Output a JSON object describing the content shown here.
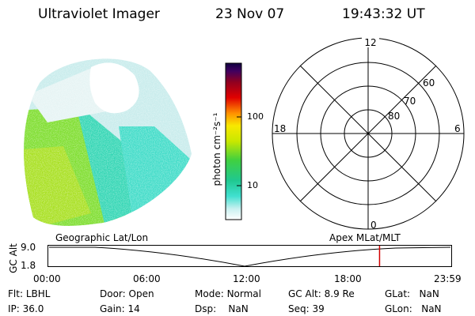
{
  "header": {
    "instrument": "Ultraviolet Imager",
    "date": "23 Nov 07",
    "time": "19:43:32 UT"
  },
  "colorbar": {
    "unit_label": "photon cm⁻²s⁻¹",
    "ticks": [
      "100",
      "10"
    ],
    "scale": "log"
  },
  "polar_grid": {
    "hour_labels": [
      "12",
      "18",
      "6",
      "0"
    ],
    "lat_labels": [
      "60",
      "70",
      "80"
    ]
  },
  "timeline": {
    "left_label": "Geographic Lat/Lon",
    "right_label": "Apex MLat/MLT",
    "y_axis_label": "GC Alt",
    "y_ticks": [
      "9.0",
      "1.8"
    ],
    "x_ticks": [
      "00:00",
      "06:00",
      "12:00",
      "18:00",
      "23:59"
    ],
    "marker_time": "19:43",
    "marker_color": "#d00000"
  },
  "status": {
    "row1": [
      {
        "label": "Flt:",
        "value": "LBHL"
      },
      {
        "label": "Door:",
        "value": "Open"
      },
      {
        "label": "Mode:",
        "value": "Normal"
      },
      {
        "label": "GC Alt:",
        "value": "8.9 Re"
      },
      {
        "label": "GLat:",
        "value": "NaN"
      }
    ],
    "row2": [
      {
        "label": "IP:",
        "value": "36.0"
      },
      {
        "label": "Gain:",
        "value": "14"
      },
      {
        "label": "Dsp:",
        "value": "NaN"
      },
      {
        "label": "Seq:",
        "value": "39"
      },
      {
        "label": "GLon:",
        "value": "NaN"
      }
    ]
  }
}
